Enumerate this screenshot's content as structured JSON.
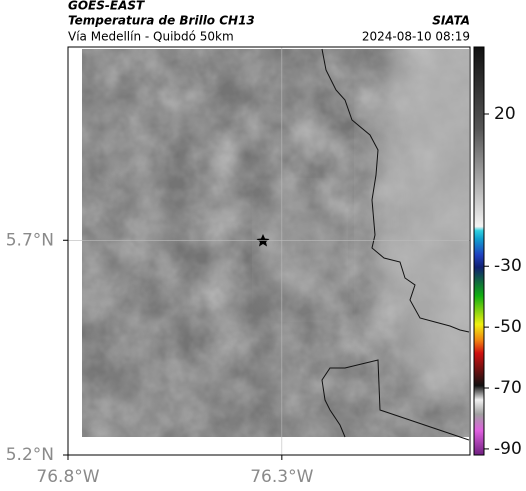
{
  "header": {
    "title": "GOES-EAST",
    "subtitle": "Temperatura de Brillo CH13",
    "region": "Vía Medellín - Quibdó 50km",
    "source": "SIATA",
    "timestamp": "2024-08-10 08:19"
  },
  "map": {
    "xlim": [
      -76.8,
      -75.86
    ],
    "ylim": [
      5.2,
      6.15
    ],
    "xticks": [
      {
        "value": -76.8,
        "label": "76.8°W"
      },
      {
        "value": -76.3,
        "label": "76.3°W"
      }
    ],
    "yticks": [
      {
        "value": 5.2,
        "label": "5.2°N"
      },
      {
        "value": 5.7,
        "label": "5.7°N"
      }
    ],
    "grid": true
  },
  "colorbar": {
    "clim": [
      -92,
      42
    ],
    "ticks": [
      20,
      -30,
      -50,
      -70,
      -90
    ]
  }
}
